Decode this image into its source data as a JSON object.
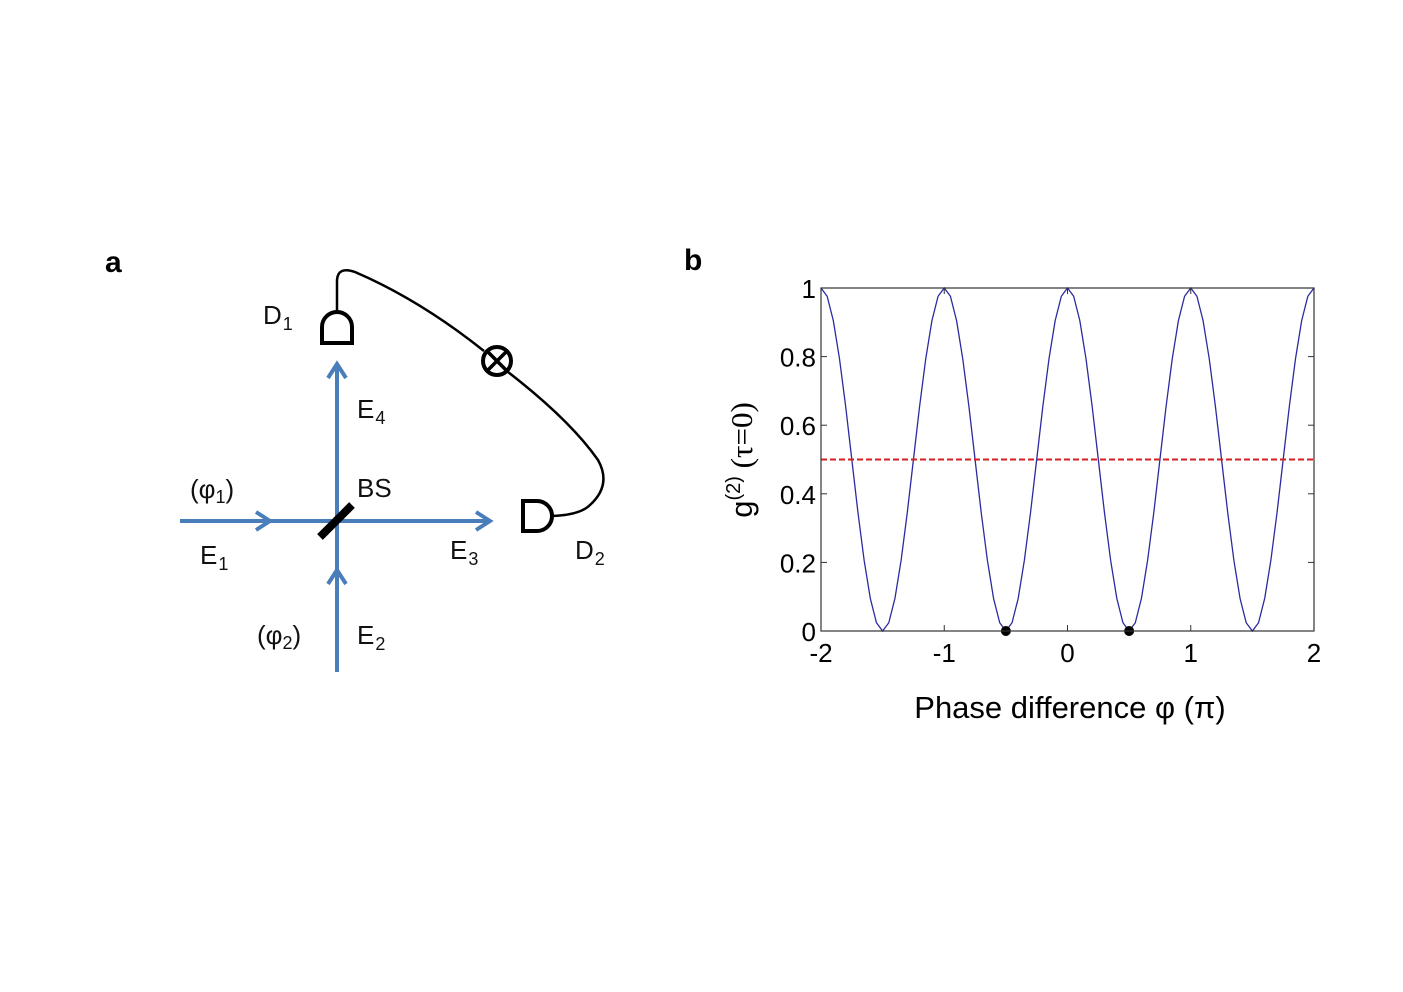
{
  "panel_a": {
    "label": "a",
    "labels": {
      "d1": "D",
      "d1_sub": "1",
      "d2": "D",
      "d2_sub": "2",
      "e1": "E",
      "e1_sub": "1",
      "e2": "E",
      "e2_sub": "2",
      "e3": "E",
      "e3_sub": "3",
      "e4": "E",
      "e4_sub": "4",
      "phi1_open": "(φ",
      "phi1_sub": "1",
      "phi1_close": ")",
      "phi2_open": "(φ",
      "phi2_sub": "2",
      "phi2_close": ")",
      "bs": "BS"
    },
    "colors": {
      "beam": "#4a7ebb",
      "component": "#000000"
    },
    "icons": [
      "beam-splitter",
      "detector",
      "correlator-otimes-icon"
    ]
  },
  "panel_b": {
    "label": "b"
  },
  "chart_data": {
    "type": "line",
    "title": "",
    "xlabel": "Phase difference φ (π)",
    "ylabel_main": "g",
    "ylabel_sup": "(2)",
    "ylabel_tail": " (τ=0)",
    "xlim": [
      -2,
      2
    ],
    "ylim": [
      0,
      1
    ],
    "xticks": [
      -2,
      -1,
      0,
      1,
      2
    ],
    "xtick_labels": [
      "-2",
      "-1",
      "0",
      "1",
      "2"
    ],
    "yticks": [
      0,
      0.2,
      0.4,
      0.6,
      0.8,
      1
    ],
    "ytick_labels": [
      "0",
      "0.2",
      "0.4",
      "0.6",
      "0.8",
      "1"
    ],
    "grid": false,
    "series": [
      {
        "color": "#2b2ba0",
        "style": "solid",
        "x": [
          -2,
          -1.95,
          -1.9,
          -1.85,
          -1.8,
          -1.75,
          -1.7,
          -1.65,
          -1.6,
          -1.55,
          -1.5,
          -1.45,
          -1.4,
          -1.35,
          -1.3,
          -1.25,
          -1.2,
          -1.15,
          -1.1,
          -1.05,
          -1,
          -0.95,
          -0.9,
          -0.85,
          -0.8,
          -0.75,
          -0.7,
          -0.65,
          -0.6,
          -0.55,
          -0.5,
          -0.45,
          -0.4,
          -0.35,
          -0.3,
          -0.25,
          -0.2,
          -0.15,
          -0.1,
          -0.05,
          0,
          0.05,
          0.1,
          0.15,
          0.2,
          0.25,
          0.3,
          0.35,
          0.4,
          0.45,
          0.5,
          0.55,
          0.6,
          0.65,
          0.7,
          0.75,
          0.8,
          0.85,
          0.9,
          0.95,
          1,
          1.05,
          1.1,
          1.15,
          1.2,
          1.25,
          1.3,
          1.35,
          1.4,
          1.45,
          1.5,
          1.55,
          1.6,
          1.65,
          1.7,
          1.75,
          1.8,
          1.85,
          1.9,
          1.95,
          2
        ],
        "y": [
          1,
          0.976,
          0.905,
          0.794,
          0.655,
          0.5,
          0.345,
          0.206,
          0.095,
          0.024,
          0,
          0.024,
          0.095,
          0.206,
          0.345,
          0.5,
          0.655,
          0.794,
          0.905,
          0.976,
          1,
          0.976,
          0.905,
          0.794,
          0.655,
          0.5,
          0.345,
          0.206,
          0.095,
          0.024,
          0,
          0.024,
          0.095,
          0.206,
          0.345,
          0.5,
          0.655,
          0.794,
          0.905,
          0.976,
          1,
          0.976,
          0.905,
          0.794,
          0.655,
          0.5,
          0.345,
          0.206,
          0.095,
          0.024,
          0,
          0.024,
          0.095,
          0.206,
          0.345,
          0.5,
          0.655,
          0.794,
          0.905,
          0.976,
          1,
          0.976,
          0.905,
          0.794,
          0.655,
          0.5,
          0.345,
          0.206,
          0.095,
          0.024,
          0,
          0.024,
          0.095,
          0.206,
          0.345,
          0.5,
          0.655,
          0.794,
          0.905,
          0.976,
          1
        ]
      },
      {
        "color": "#d42020",
        "style": "dashed",
        "x": [
          -2,
          2
        ],
        "y": [
          0.5,
          0.5
        ]
      }
    ],
    "markers": {
      "color": "#000000",
      "x": [
        -0.5,
        0.5
      ],
      "y": [
        0,
        0
      ]
    }
  }
}
